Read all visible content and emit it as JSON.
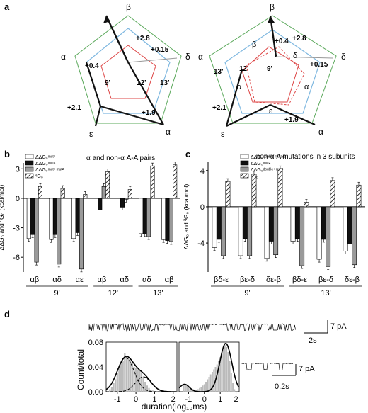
{
  "panels": {
    "a": {
      "letter": "a",
      "left": {
        "subunit_labels": [
          "β",
          "δ",
          "α",
          "ε",
          "α"
        ],
        "position_labels": [
          "9'",
          "12'",
          "13'"
        ],
        "energy_labels": [
          "+2.8",
          "+0.15",
          "+1.9",
          "+2.1",
          "+0.4"
        ]
      },
      "right": {
        "subunit_labels": [
          "β",
          "δ",
          "α",
          "ε",
          "α"
        ],
        "inner_labels": [
          "β",
          "δ",
          "α",
          "ε",
          "α"
        ],
        "position_labels": [
          "9'",
          "12'",
          "13'"
        ],
        "energy_labels": [
          "+2.8",
          "+0.15",
          "+1.9",
          "+2.1",
          "+0.4"
        ]
      }
    },
    "b": {
      "letter": "b",
      "title": "α and non-α A-A pairs",
      "ylabel": "ΔΔG₀ and ⁱᴵG₀ (kcal/mol)",
      "legend": [
        "ΔΔG₀ᵐᵘᵗ¹",
        "ΔΔG₀ᵐᵘᵗ²",
        "ΔΔG₀ᵐᵘᵗ⁺ᵐᵘᵗ²",
        "ⁱᴵG₀"
      ],
      "chart_data": {
        "type": "bar",
        "categories": [
          "αβ",
          "αδ",
          "αε",
          "αβ",
          "αδ",
          "αδ",
          "αβ"
        ],
        "groups": [
          {
            "label": "9'",
            "span": [
              0,
              2
            ]
          },
          {
            "label": "12'",
            "span": [
              3,
              4
            ]
          },
          {
            "label": "13'",
            "span": [
              5,
              6
            ]
          }
        ],
        "ylim": [
          -7.5,
          3.6
        ],
        "yticks": [
          3,
          0,
          -3,
          -6
        ],
        "series": [
          {
            "name": "ΔΔG₀ᵐᵘᵗ¹",
            "style": "white",
            "values": [
              -4.1,
              -4.2,
              -4.1,
              0,
              0,
              -3.6,
              -4.2
            ]
          },
          {
            "name": "ΔΔG₀ᵐᵘᵗ²",
            "style": "black",
            "values": [
              -3.7,
              -3.7,
              -3.5,
              -1.2,
              -0.9,
              -3.6,
              -4.3
            ]
          },
          {
            "name": "ΔΔG₀ᵐᵘᵗ⁺ᵐᵘᵗ²",
            "style": "gray",
            "values": [
              -6.5,
              -6.7,
              -7.2,
              1.2,
              -0.1,
              -3.9,
              -4.4
            ]
          },
          {
            "name": "ⁱᴵG₀",
            "style": "hatch",
            "values": [
              1.2,
              1.0,
              0.4,
              2.7,
              0.9,
              3.3,
              3.4
            ]
          }
        ]
      }
    },
    "c": {
      "letter": "c",
      "title": "non-α A mutations in 3 subunits",
      "ylabel": "ΔΔG₀ and ⁱᴵG₀ (kcal/mol)",
      "legend": [
        "ΔΔG₀ᵈᵒᵘᵇˡᵉ ᵐᵘᵗᵃⁿᵗ",
        "ΔΔG₀ᵐᵘᵗ²",
        "ΔΔG₀ᵈᵒᵘᵇˡᵉ⁺ᵐᵘᵗ²",
        "ⁱᴵG₀"
      ],
      "chart_data": {
        "type": "bar",
        "categories": [
          "βδ-ε",
          "βε-δ",
          "δε-β",
          "βδ-ε",
          "βε-δ",
          "δε-β"
        ],
        "groups": [
          {
            "label": "9'",
            "span": [
              0,
              2
            ]
          },
          {
            "label": "13'",
            "span": [
              3,
              5
            ]
          }
        ],
        "ylim": [
          -7.2,
          5.0
        ],
        "yticks": [
          4,
          0,
          -4
        ],
        "series": [
          {
            "name": "ΔΔG₀ᵈᵒᵘᵇˡᵉ ᵐᵘᵗᵃⁿᵗ",
            "style": "white",
            "values": [
              -4.5,
              -5.4,
              -5.7,
              -3.8,
              -5.8,
              -4.9
            ]
          },
          {
            "name": "ΔΔG₀ᵐᵘᵗ²",
            "style": "black",
            "values": [
              -3.6,
              -3.5,
              -3.8,
              -3.5,
              -3.6,
              -4.1
            ]
          },
          {
            "name": "ΔΔG₀ᵈᵒᵘᵇˡᵉ⁺ᵐᵘᵗ²",
            "style": "gray",
            "values": [
              -5.4,
              -5.4,
              -5.3,
              -6.5,
              -6.6,
              -6.4
            ]
          },
          {
            "name": "ⁱᴵG₀",
            "style": "hatch",
            "values": [
              2.8,
              3.6,
              4.2,
              0.5,
              2.9,
              2.4
            ]
          }
        ]
      }
    },
    "d": {
      "letter": "d",
      "trace_scale_current": "7 pA",
      "trace_scale_time": "2s",
      "inset_scale_current": "7 pA",
      "inset_scale_time": "0.2s",
      "ylabel": "Count/total",
      "xlabel": "duration(log₁₀ms)",
      "chart_data": [
        {
          "type": "bar",
          "ylim": [
            0,
            0.08
          ],
          "xlim": [
            -1.6,
            2.2
          ],
          "yticks": [
            "0.08",
            "0.04",
            "0.00"
          ],
          "xticks": [
            "-1",
            "0",
            "1",
            "2"
          ],
          "x": [
            -1.4,
            -1.3,
            -1.2,
            -1.1,
            -1.0,
            -0.9,
            -0.8,
            -0.7,
            -0.6,
            -0.5,
            -0.4,
            -0.3,
            -0.2,
            -0.1,
            0.0,
            0.1,
            0.2,
            0.3,
            0.4,
            0.5,
            0.6,
            0.7,
            0.8,
            0.9,
            1.0
          ],
          "values": [
            0.004,
            0.008,
            0.014,
            0.02,
            0.03,
            0.04,
            0.046,
            0.05,
            0.062,
            0.058,
            0.054,
            0.05,
            0.046,
            0.04,
            0.038,
            0.036,
            0.034,
            0.03,
            0.024,
            0.016,
            0.01,
            0.006,
            0.003,
            0.002,
            0.001
          ]
        },
        {
          "type": "bar",
          "xticks": [
            "-1",
            "0",
            "1",
            "2"
          ],
          "x": [
            -1.3,
            -1.2,
            -1.1,
            -1.0,
            -0.9,
            -0.8,
            -0.7,
            -0.6,
            -0.5,
            -0.4,
            -0.3,
            -0.2,
            -0.1,
            0.0,
            0.1,
            0.2,
            0.3,
            0.4,
            0.5,
            0.6,
            0.7,
            0.8,
            0.9,
            1.0,
            1.1,
            1.2,
            1.3,
            1.4,
            1.5,
            1.6,
            1.7,
            1.8,
            1.9
          ],
          "values": [
            0.012,
            0.012,
            0.01,
            0.008,
            0.006,
            0.005,
            0.004,
            0.003,
            0.003,
            0.004,
            0.006,
            0.008,
            0.01,
            0.012,
            0.016,
            0.02,
            0.024,
            0.028,
            0.032,
            0.036,
            0.04,
            0.044,
            0.05,
            0.056,
            0.062,
            0.068,
            0.075,
            0.072,
            0.064,
            0.05,
            0.03,
            0.014,
            0.004
          ]
        }
      ]
    }
  }
}
